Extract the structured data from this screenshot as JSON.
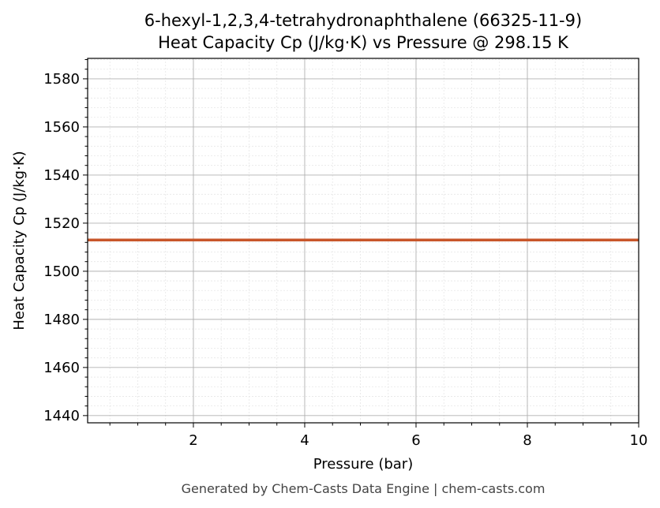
{
  "chart_data": {
    "type": "line",
    "title": "6-hexyl-1,2,3,4-tetrahydronaphthalene (66325-11-9)",
    "subtitle": "Heat Capacity Cp (J/kg·K) vs Pressure @ 298.15 K",
    "xlabel": "Pressure (bar)",
    "ylabel": "Heat Capacity Cp (J/kg·K)",
    "footer": "Generated by Chem-Casts Data Engine | chem-casts.com",
    "x": [
      0.1,
      10
    ],
    "series": [
      {
        "name": "Cp",
        "color": "#c8562a",
        "values": [
          1513,
          1513
        ]
      }
    ],
    "xlim": [
      0.1,
      10
    ],
    "ylim": [
      1437,
      1588.5
    ],
    "xticks": [
      2,
      4,
      6,
      8,
      10
    ],
    "yticks": [
      1440,
      1460,
      1480,
      1500,
      1520,
      1540,
      1560,
      1580
    ],
    "xminorticks": [
      0.5,
      1,
      1.5,
      2.5,
      3,
      3.5,
      4.5,
      5,
      5.5,
      6.5,
      7,
      7.5,
      8.5,
      9,
      9.5
    ],
    "yminorticks": [
      1444,
      1448,
      1452,
      1456,
      1464,
      1468,
      1472,
      1476,
      1484,
      1488,
      1492,
      1496,
      1504,
      1508,
      1512,
      1516,
      1524,
      1528,
      1532,
      1536,
      1544,
      1548,
      1552,
      1556,
      1564,
      1568,
      1572,
      1576,
      1584,
      1588
    ],
    "grid": true
  }
}
